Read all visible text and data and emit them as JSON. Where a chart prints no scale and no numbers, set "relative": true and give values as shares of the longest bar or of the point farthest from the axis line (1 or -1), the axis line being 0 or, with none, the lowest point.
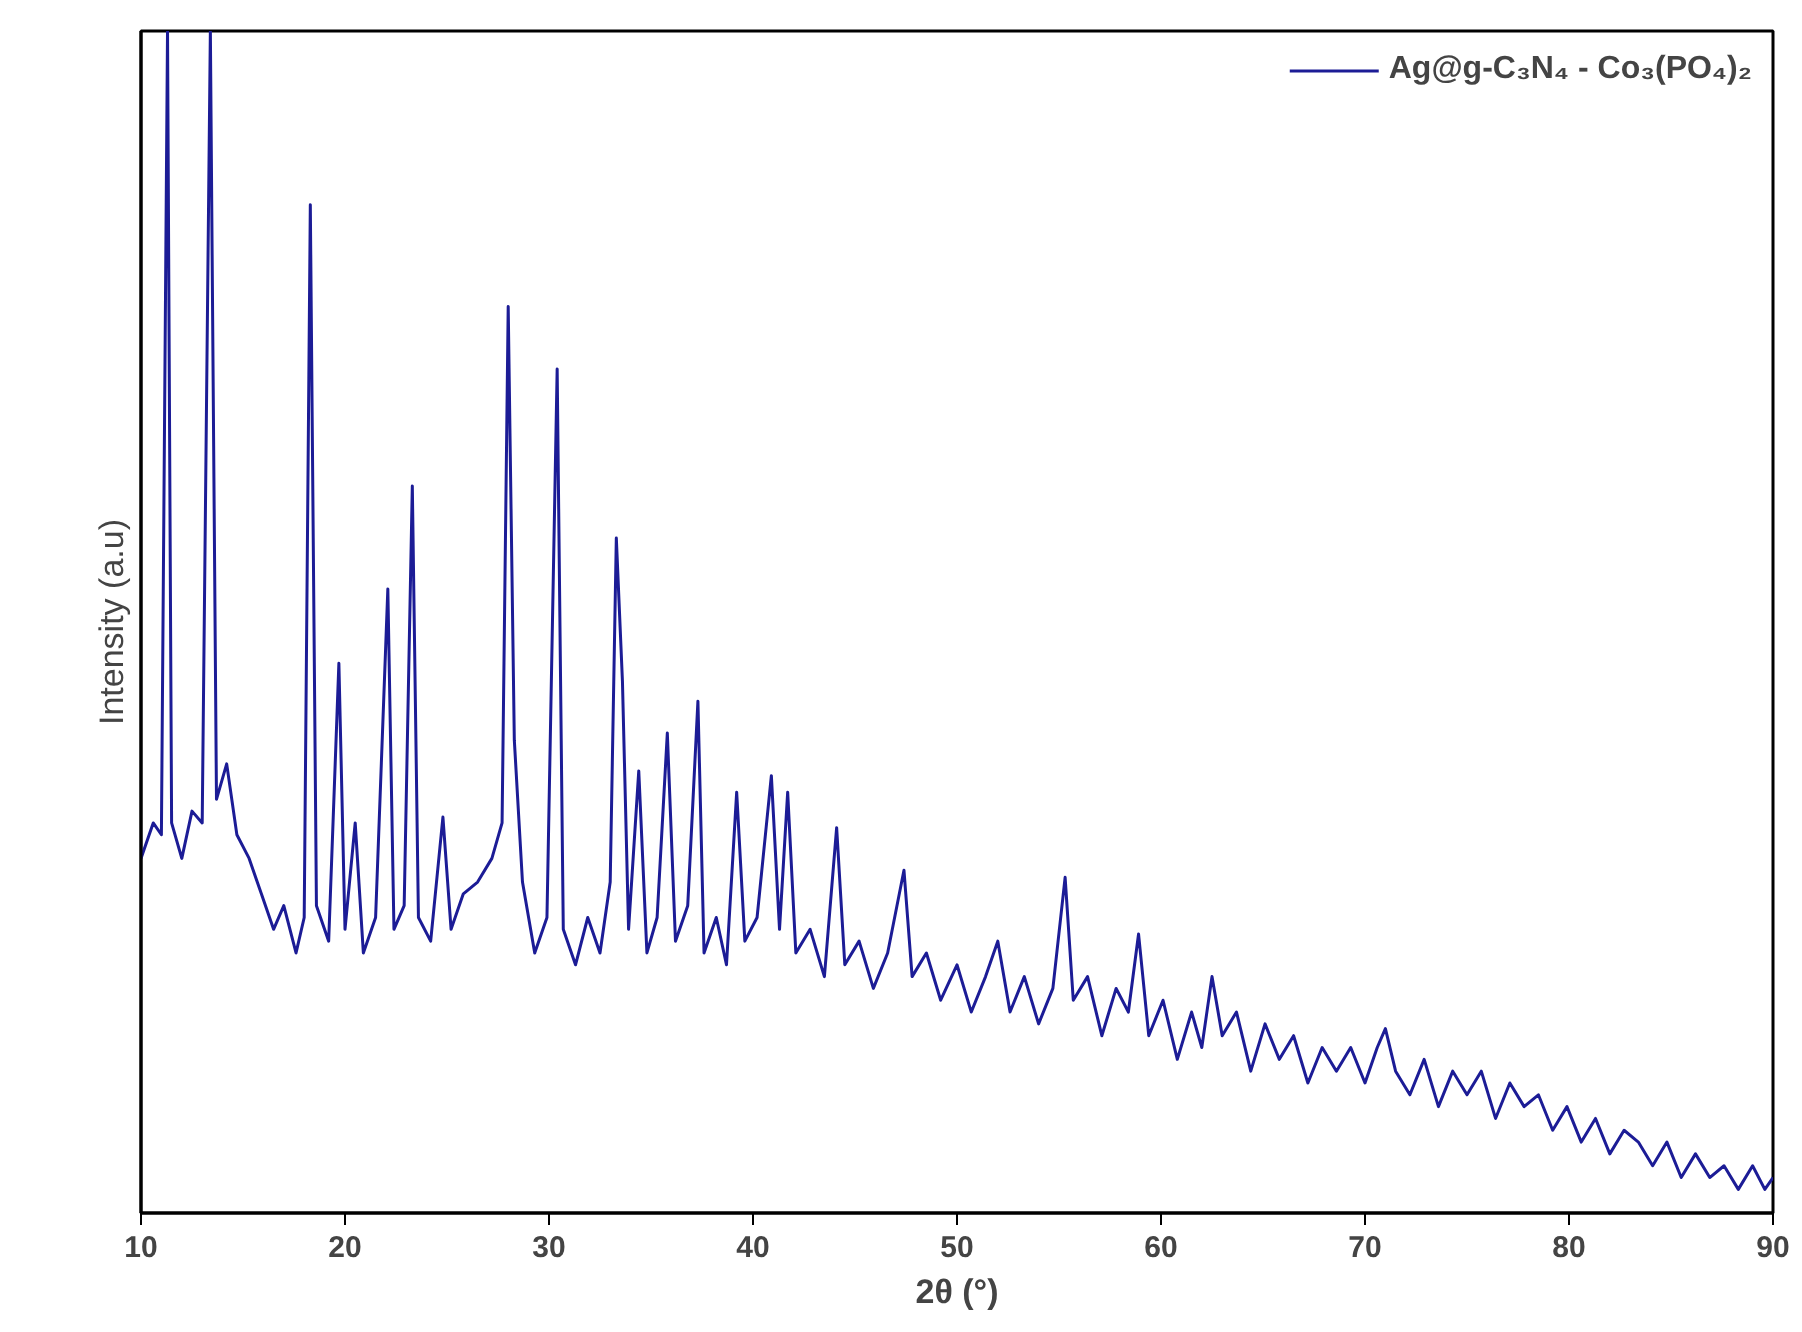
{
  "chart_data": {
    "type": "line",
    "xlabel": "2θ (°)",
    "ylabel": "Intensity (a.u)",
    "relative": true,
    "xlim": [
      10,
      90
    ],
    "xticks": [
      10,
      20,
      30,
      40,
      50,
      60,
      70,
      80,
      90
    ],
    "grid": false,
    "legend": "top right",
    "marker": "none",
    "line_style": "solid",
    "series": [
      {
        "name": "Ag@g-C₃N₄ - Co₃(PO₄)₂",
        "color": "#1c1c96",
        "x": [
          10,
          10.6,
          11.0,
          11.3,
          11.5,
          12.0,
          12.5,
          13.0,
          13.4,
          13.7,
          14.2,
          14.7,
          15.3,
          15.9,
          16.5,
          17.0,
          17.6,
          18.0,
          18.3,
          18.6,
          19.2,
          19.7,
          20.0,
          20.5,
          20.9,
          21.5,
          22.1,
          22.4,
          22.9,
          23.3,
          23.6,
          24.2,
          24.8,
          25.2,
          25.8,
          26.5,
          27.2,
          27.7,
          28.0,
          28.3,
          28.7,
          29.3,
          29.9,
          30.4,
          30.7,
          31.3,
          31.9,
          32.5,
          33.0,
          33.3,
          33.6,
          33.9,
          34.4,
          34.8,
          35.3,
          35.8,
          36.2,
          36.8,
          37.3,
          37.6,
          38.2,
          38.7,
          39.2,
          39.6,
          40.2,
          40.9,
          41.3,
          41.7,
          42.1,
          42.8,
          43.5,
          44.1,
          44.5,
          45.2,
          45.9,
          46.6,
          47.4,
          47.8,
          48.5,
          49.2,
          50.0,
          50.7,
          51.4,
          52.0,
          52.6,
          53.3,
          54.0,
          54.7,
          55.3,
          55.7,
          56.4,
          57.1,
          57.8,
          58.4,
          58.9,
          59.4,
          60.1,
          60.8,
          61.5,
          62.0,
          62.5,
          63.0,
          63.7,
          64.4,
          65.1,
          65.8,
          66.5,
          67.2,
          67.9,
          68.6,
          69.3,
          70.0,
          70.6,
          71.0,
          71.5,
          72.2,
          72.9,
          73.6,
          74.3,
          75.0,
          75.7,
          76.4,
          77.1,
          77.8,
          78.5,
          79.2,
          79.9,
          80.6,
          81.3,
          82.0,
          82.7,
          83.4,
          84.1,
          84.8,
          85.5,
          86.2,
          86.9,
          87.6,
          88.3,
          89.0,
          89.6,
          90.0
        ],
        "values": [
          0.3,
          0.33,
          0.32,
          1.0,
          0.33,
          0.3,
          0.34,
          0.33,
          1.0,
          0.35,
          0.38,
          0.32,
          0.3,
          0.27,
          0.24,
          0.26,
          0.22,
          0.25,
          0.853,
          0.26,
          0.23,
          0.465,
          0.24,
          0.33,
          0.22,
          0.25,
          0.528,
          0.24,
          0.26,
          0.615,
          0.25,
          0.23,
          0.335,
          0.24,
          0.27,
          0.28,
          0.3,
          0.33,
          0.767,
          0.4,
          0.28,
          0.22,
          0.25,
          0.714,
          0.24,
          0.21,
          0.25,
          0.22,
          0.28,
          0.571,
          0.45,
          0.24,
          0.374,
          0.22,
          0.25,
          0.406,
          0.23,
          0.26,
          0.433,
          0.22,
          0.25,
          0.21,
          0.356,
          0.23,
          0.25,
          0.37,
          0.24,
          0.356,
          0.22,
          0.24,
          0.2,
          0.326,
          0.21,
          0.23,
          0.19,
          0.22,
          0.29,
          0.2,
          0.22,
          0.18,
          0.21,
          0.17,
          0.2,
          0.23,
          0.17,
          0.2,
          0.16,
          0.19,
          0.284,
          0.18,
          0.2,
          0.15,
          0.19,
          0.17,
          0.236,
          0.15,
          0.18,
          0.13,
          0.17,
          0.14,
          0.2,
          0.15,
          0.17,
          0.12,
          0.16,
          0.13,
          0.15,
          0.11,
          0.14,
          0.12,
          0.14,
          0.11,
          0.14,
          0.156,
          0.12,
          0.1,
          0.13,
          0.09,
          0.12,
          0.1,
          0.12,
          0.08,
          0.11,
          0.09,
          0.1,
          0.07,
          0.09,
          0.06,
          0.08,
          0.05,
          0.07,
          0.06,
          0.04,
          0.06,
          0.03,
          0.05,
          0.03,
          0.04,
          0.02,
          0.04,
          0.02,
          0.03
        ]
      }
    ]
  }
}
